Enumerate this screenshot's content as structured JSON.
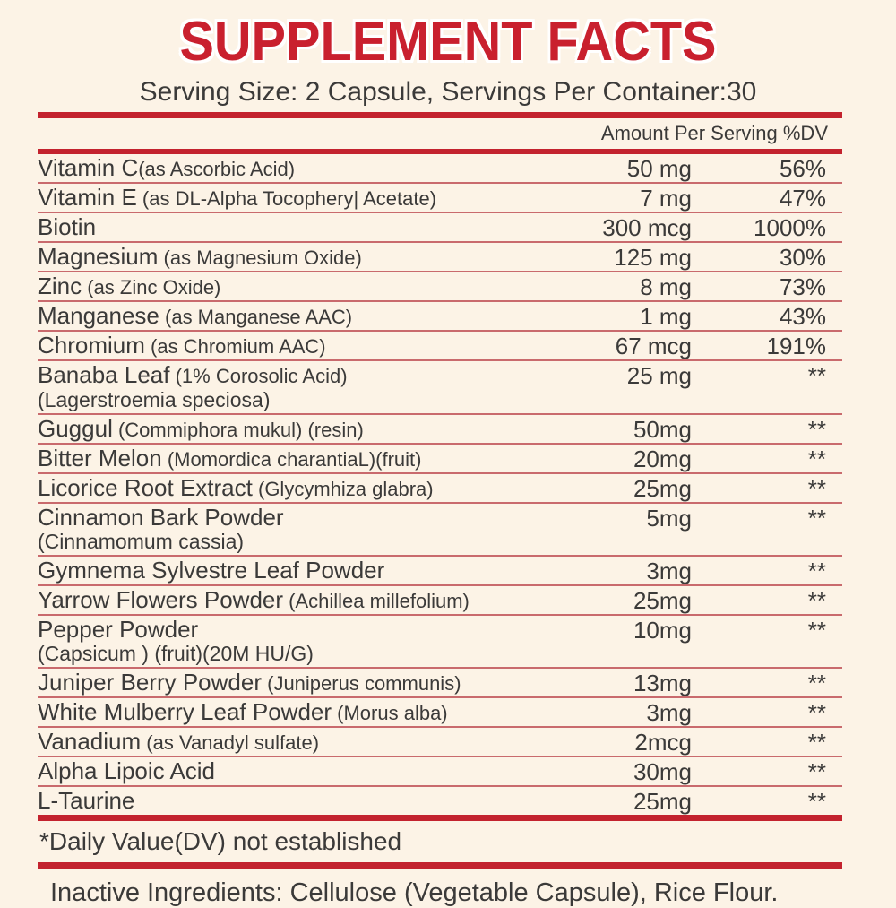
{
  "label": {
    "title": "SUPPLEMENT FACTS",
    "serving_line": "Serving Size: 2 Capsule, Servings Per Container:30",
    "column_header": "Amount Per Serving %DV",
    "rows": [
      {
        "name": "Vitamin C",
        "detail": "(as Ascorbic Acid)",
        "tight": true,
        "line2": "",
        "amount": "50 mg",
        "dv": "56%"
      },
      {
        "name": "Vitamin E",
        "detail": "(as DL-Alpha Tocophery| Acetate)",
        "line2": "",
        "amount": "7 mg",
        "dv": "47%"
      },
      {
        "name": "Biotin",
        "detail": "",
        "line2": "",
        "amount": "300 mcg",
        "dv": "1000%"
      },
      {
        "name": "Magnesium",
        "detail": "(as Magnesium Oxide)",
        "line2": "",
        "amount": "125 mg",
        "dv": "30%"
      },
      {
        "name": "Zinc",
        "detail": "(as Zinc Oxide)",
        "line2": "",
        "amount": "8 mg",
        "dv": "73%"
      },
      {
        "name": "Manganese",
        "detail": "(as Manganese AAC)",
        "line2": "",
        "amount": "1 mg",
        "dv": "43%"
      },
      {
        "name": "Chromium",
        "detail": "(as Chromium AAC)",
        "line2": "",
        "amount": "67 mcg",
        "dv": "191%"
      },
      {
        "name": "Banaba Leaf",
        "detail": "(1% Corosolic Acid)",
        "line2": "(Lagerstroemia speciosa)",
        "amount": "25 mg",
        "dv": "**"
      },
      {
        "name": "Guggul",
        "detail": "(Commiphora mukul) (resin)",
        "line2": "",
        "amount": "50mg",
        "dv": "**"
      },
      {
        "name": "Bitter Melon",
        "detail": "(Momordica charantiaL)(fruit)",
        "line2": "",
        "amount": "20mg",
        "dv": "**"
      },
      {
        "name": "Licorice Root Extract",
        "detail": "(Glycymhiza glabra)",
        "line2": "",
        "amount": "25mg",
        "dv": "**"
      },
      {
        "name": "Cinnamon Bark Powder",
        "detail": "",
        "line2": "(Cinnamomum cassia)",
        "amount": "5mg",
        "dv": "**"
      },
      {
        "name": "Gymnema Sylvestre Leaf Powder",
        "detail": "",
        "line2": "",
        "amount": "3mg",
        "dv": "**"
      },
      {
        "name": "Yarrow Flowers Powder",
        "detail": "(Achillea millefolium)",
        "line2": "",
        "amount": "25mg",
        "dv": "**"
      },
      {
        "name": "Pepper Powder",
        "detail": "",
        "line2": "(Capsicum ) (fruit)(20M HU/G)",
        "amount": "10mg",
        "dv": "**"
      },
      {
        "name": "Juniper Berry Powder",
        "detail": "(Juniperus communis)",
        "line2": "",
        "amount": "13mg",
        "dv": "**"
      },
      {
        "name": "White Mulberry Leaf Powder",
        "detail": "(Morus alba)",
        "line2": "",
        "amount": "3mg",
        "dv": "**"
      },
      {
        "name": "Vanadium",
        "detail": "(as Vanadyl sulfate)",
        "line2": "",
        "amount": "2mcg",
        "dv": "**"
      },
      {
        "name": "Alpha Lipoic Acid",
        "detail": "",
        "line2": "",
        "amount": "30mg",
        "dv": "**"
      },
      {
        "name": "L-Taurine",
        "detail": "",
        "line2": "",
        "amount": "25mg",
        "dv": "**"
      }
    ],
    "daily_value_note": "*Daily Value(DV) not established",
    "inactive_ingredients": "Inactive Ingredients: Cellulose (Vegetable Capsule), Rice Flour."
  },
  "colors": {
    "title_red": "#c9202e",
    "bar_red": "#c3222e",
    "separator_red": "#c96a6d",
    "background": "#fcf3e6",
    "text": "#3b3a39"
  }
}
